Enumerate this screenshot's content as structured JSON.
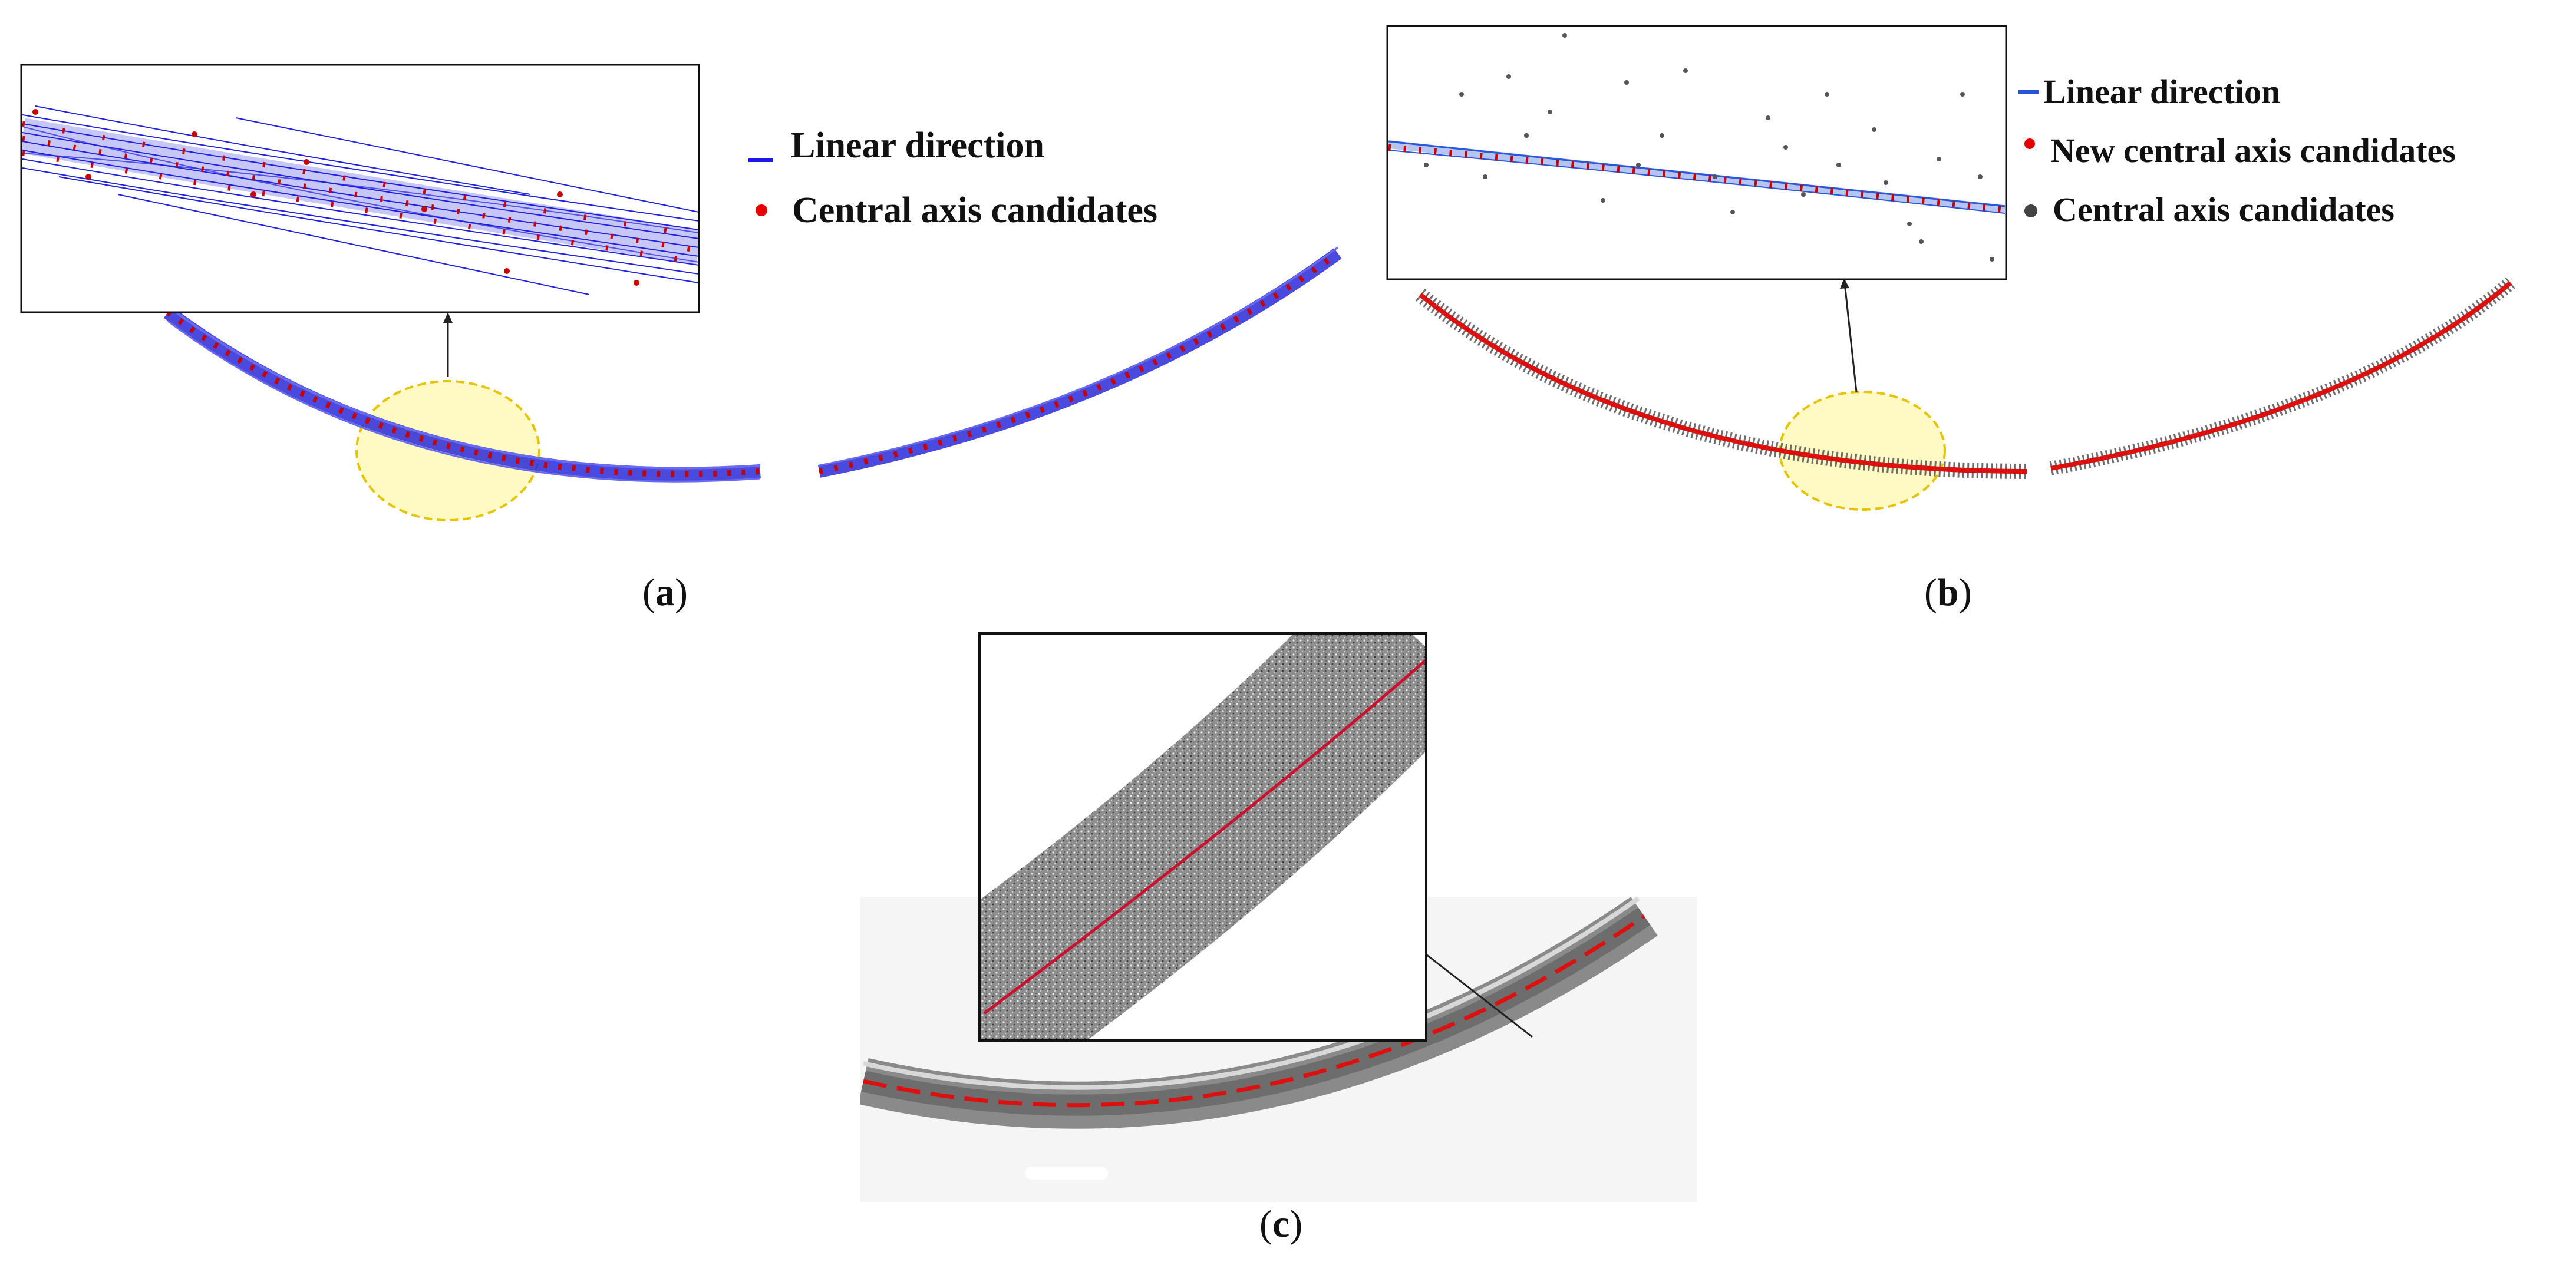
{
  "figure": {
    "panel_a": {
      "caption_open": "(",
      "caption_letter": "a",
      "caption_close": ")",
      "legend": [
        {
          "label": "Linear direction",
          "marker": "dash",
          "color": "#1a1ae6"
        },
        {
          "label": "Central axis candidates",
          "marker": "dot",
          "color": "#e60000"
        }
      ]
    },
    "panel_b": {
      "caption_open": "(",
      "caption_letter": "b",
      "caption_close": ")",
      "legend": [
        {
          "label": "Linear direction",
          "marker": "dash",
          "color": "#2a57d8"
        },
        {
          "label": "New central axis candidates",
          "marker": "dot",
          "color": "#e60000"
        },
        {
          "label": "Central axis candidates",
          "marker": "dot",
          "color": "#444444"
        }
      ]
    },
    "panel_c": {
      "caption_open": "(",
      "caption_letter": "c",
      "caption_close": ")"
    }
  },
  "colors": {
    "line_blue": "#1a1ae6",
    "point_red": "#d40000",
    "point_gray": "#555555",
    "highlight_fill": "#fff7b0",
    "highlight_stroke": "#e6c400"
  }
}
